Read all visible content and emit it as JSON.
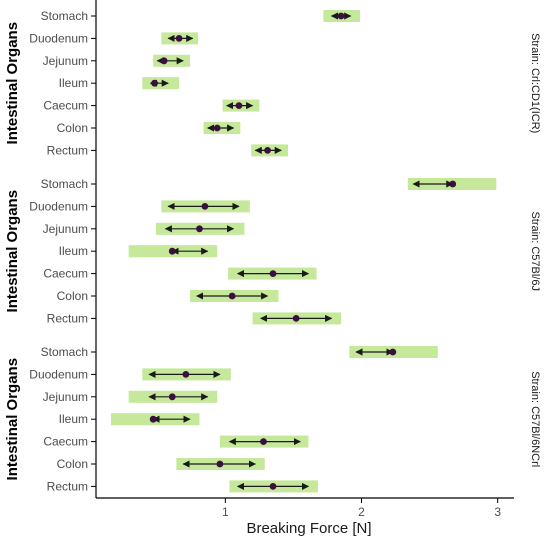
{
  "chart_data": {
    "type": "interval",
    "xlabel": "Breaking Force [N]",
    "ylabel": "Intestinal Organs",
    "x_ticks": [
      1,
      2,
      3
    ],
    "xlim": [
      0.05,
      3.12
    ],
    "grid": false,
    "colors": {
      "bar": "#c6e89a",
      "point": "#3b0f3f",
      "arrow": "#1a1a1a"
    },
    "organs": [
      "Stomach",
      "Duodenum",
      "Jejunum",
      "Ileum",
      "Caecum",
      "Colon",
      "Rectum"
    ],
    "panels": [
      {
        "strain": "Strain: Crl:CD1(ICR)",
        "rows": [
          {
            "organ": "Stomach",
            "lo": 1.72,
            "hi": 1.99,
            "mean": 1.85,
            "arrow_from": 1.78,
            "arrow_to": 1.92
          },
          {
            "organ": "Duodenum",
            "lo": 0.53,
            "hi": 0.8,
            "mean": 0.66,
            "arrow_from": 0.58,
            "arrow_to": 0.76
          },
          {
            "organ": "Jejunum",
            "lo": 0.47,
            "hi": 0.74,
            "mean": 0.55,
            "arrow_from": 0.5,
            "arrow_to": 0.69
          },
          {
            "organ": "Ileum",
            "lo": 0.39,
            "hi": 0.66,
            "mean": 0.48,
            "arrow_from": 0.45,
            "arrow_to": 0.58
          },
          {
            "organ": "Caecum",
            "lo": 0.98,
            "hi": 1.25,
            "mean": 1.1,
            "arrow_from": 1.01,
            "arrow_to": 1.2
          },
          {
            "organ": "Colon",
            "lo": 0.84,
            "hi": 1.11,
            "mean": 0.94,
            "arrow_from": 0.87,
            "arrow_to": 1.06
          },
          {
            "organ": "Rectum",
            "lo": 1.19,
            "hi": 1.46,
            "mean": 1.31,
            "arrow_from": 1.22,
            "arrow_to": 1.41
          }
        ]
      },
      {
        "strain": "Strain: C57Bl/6J",
        "rows": [
          {
            "organ": "Stomach",
            "lo": 2.34,
            "hi": 2.99,
            "mean": 2.67,
            "arrow_from": 2.38,
            "arrow_to": 2.67
          },
          {
            "organ": "Duodenum",
            "lo": 0.53,
            "hi": 1.18,
            "mean": 0.85,
            "arrow_from": 0.58,
            "arrow_to": 1.1
          },
          {
            "organ": "Jejunum",
            "lo": 0.49,
            "hi": 1.14,
            "mean": 0.81,
            "arrow_from": 0.56,
            "arrow_to": 1.06
          },
          {
            "organ": "Ileum",
            "lo": 0.29,
            "hi": 0.94,
            "mean": 0.61,
            "arrow_from": 0.61,
            "arrow_to": 0.87
          },
          {
            "organ": "Caecum",
            "lo": 1.02,
            "hi": 1.67,
            "mean": 1.35,
            "arrow_from": 1.09,
            "arrow_to": 1.61
          },
          {
            "organ": "Colon",
            "lo": 0.74,
            "hi": 1.39,
            "mean": 1.05,
            "arrow_from": 0.79,
            "arrow_to": 1.31
          },
          {
            "organ": "Rectum",
            "lo": 1.2,
            "hi": 1.85,
            "mean": 1.52,
            "arrow_from": 1.26,
            "arrow_to": 1.78
          }
        ]
      },
      {
        "strain": "Strain: C57Bl/6NCrl",
        "rows": [
          {
            "organ": "Stomach",
            "lo": 1.91,
            "hi": 2.56,
            "mean": 2.23,
            "arrow_from": 1.96,
            "arrow_to": 2.23
          },
          {
            "organ": "Duodenum",
            "lo": 0.39,
            "hi": 1.04,
            "mean": 0.71,
            "arrow_from": 0.44,
            "arrow_to": 0.96
          },
          {
            "organ": "Jejunum",
            "lo": 0.29,
            "hi": 0.94,
            "mean": 0.61,
            "arrow_from": 0.44,
            "arrow_to": 0.87
          },
          {
            "organ": "Ileum",
            "lo": 0.16,
            "hi": 0.81,
            "mean": 0.47,
            "arrow_from": 0.47,
            "arrow_to": 0.74
          },
          {
            "organ": "Caecum",
            "lo": 0.96,
            "hi": 1.61,
            "mean": 1.28,
            "arrow_from": 1.03,
            "arrow_to": 1.55
          },
          {
            "organ": "Colon",
            "lo": 0.64,
            "hi": 1.29,
            "mean": 0.96,
            "arrow_from": 0.69,
            "arrow_to": 1.22
          },
          {
            "organ": "Rectum",
            "lo": 1.03,
            "hi": 1.68,
            "mean": 1.35,
            "arrow_from": 1.09,
            "arrow_to": 1.61
          }
        ]
      }
    ]
  }
}
